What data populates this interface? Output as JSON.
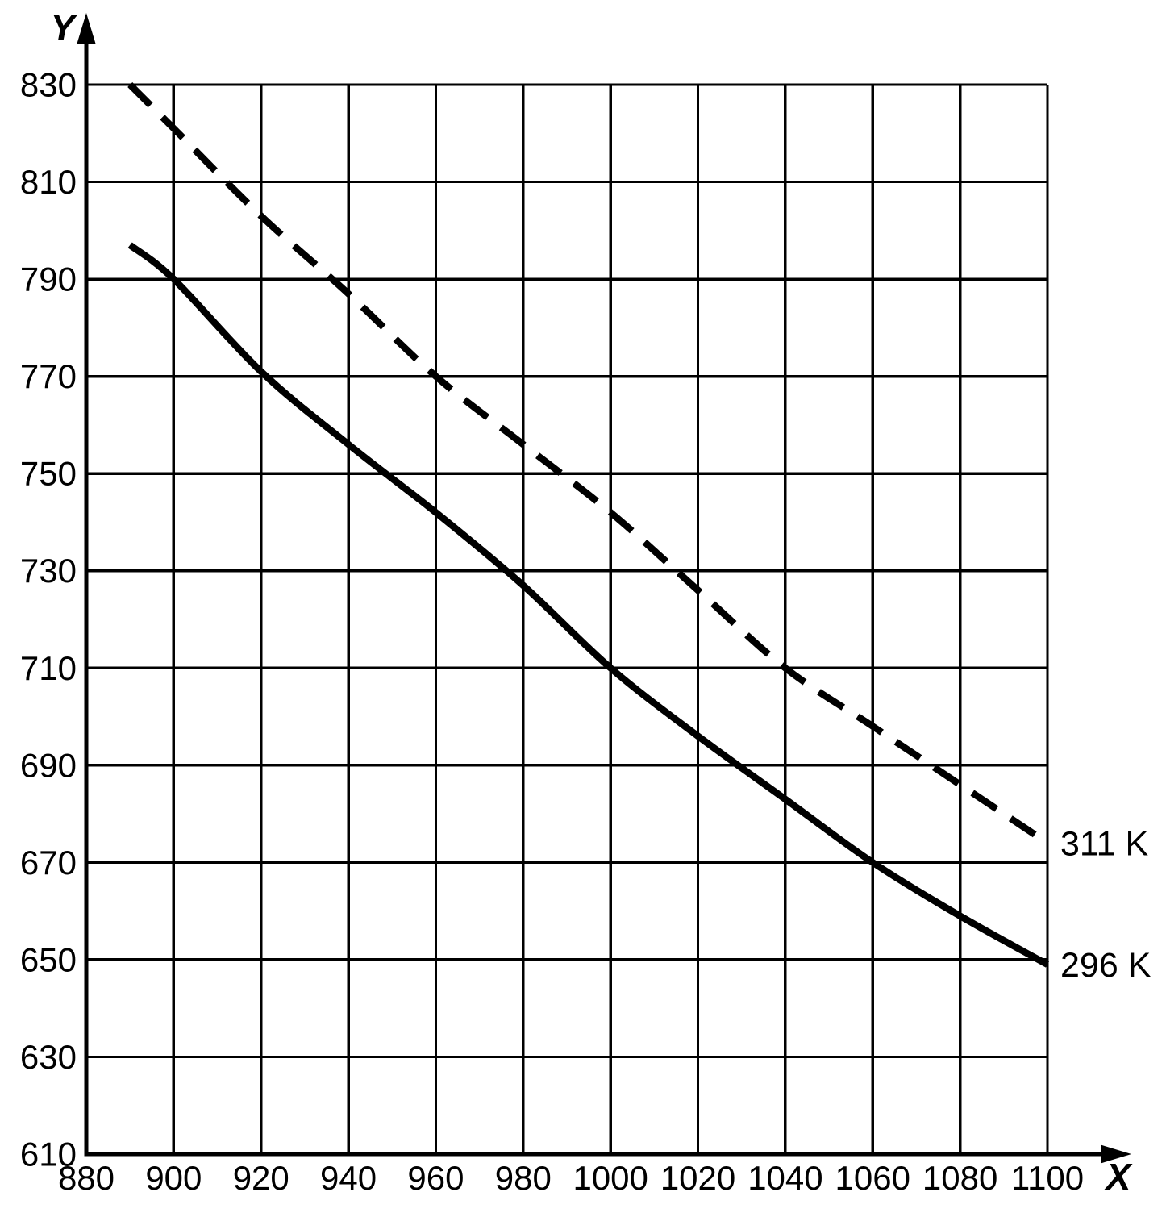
{
  "chart_data": {
    "type": "line",
    "title": "",
    "xlabel": "X",
    "ylabel": "Y",
    "xlim": [
      880,
      1100
    ],
    "ylim": [
      610,
      830
    ],
    "x_ticks": [
      880,
      900,
      920,
      940,
      960,
      980,
      1000,
      1020,
      1040,
      1060,
      1080,
      1100
    ],
    "y_ticks": [
      610,
      630,
      650,
      670,
      690,
      710,
      730,
      750,
      770,
      790,
      810,
      830
    ],
    "grid": "on",
    "legend_position": "labels-at-right-curve-ends",
    "colors": {
      "foreground": "#000000",
      "background": "#ffffff"
    },
    "series": [
      {
        "name": "311 K",
        "line_style": "dashed",
        "color": "#000000",
        "x": [
          890,
          900,
          920,
          940,
          960,
          980,
          1000,
          1020,
          1040,
          1060,
          1080,
          1100
        ],
        "y": [
          830,
          821,
          803,
          787,
          770,
          756,
          742,
          726,
          710,
          698,
          686,
          674
        ]
      },
      {
        "name": "296 K",
        "line_style": "solid",
        "color": "#000000",
        "x": [
          890,
          900,
          920,
          940,
          960,
          980,
          1000,
          1020,
          1040,
          1060,
          1080,
          1100
        ],
        "y": [
          797,
          790,
          771,
          756,
          742,
          727,
          710,
          696,
          683,
          670,
          659,
          649
        ]
      }
    ]
  }
}
